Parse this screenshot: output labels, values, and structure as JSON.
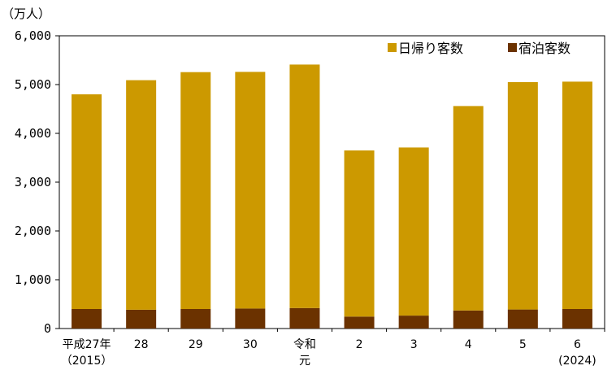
{
  "chart_data": {
    "type": "bar",
    "stacked": true,
    "unit": "（万人）",
    "categories": [
      [
        "平成27年",
        "（2015）"
      ],
      [
        "28"
      ],
      [
        "29"
      ],
      [
        "30"
      ],
      [
        "令和",
        "元"
      ],
      [
        "2"
      ],
      [
        "3"
      ],
      [
        "4"
      ],
      [
        "5"
      ],
      [
        "6",
        "(2024)"
      ]
    ],
    "series": [
      {
        "name": "宿泊客数",
        "color": "#6b3200",
        "values": [
          400,
          385,
          400,
          410,
          420,
          245,
          265,
          370,
          390,
          400
        ]
      },
      {
        "name": "日帰り客数",
        "color": "#cc9900",
        "values": [
          4400,
          4705,
          4855,
          4850,
          4990,
          3405,
          3445,
          4190,
          4660,
          4660
        ]
      }
    ],
    "ylim": [
      0,
      6000
    ],
    "yticks": [
      "0",
      "1,000",
      "2,000",
      "3,000",
      "4,000",
      "5,000",
      "6,000"
    ],
    "legend": [
      {
        "name": "日帰り客数",
        "color": "#cc9900"
      },
      {
        "name": "宿泊客数",
        "color": "#6b3200"
      }
    ],
    "legend_position": "top-right",
    "grid": false
  }
}
